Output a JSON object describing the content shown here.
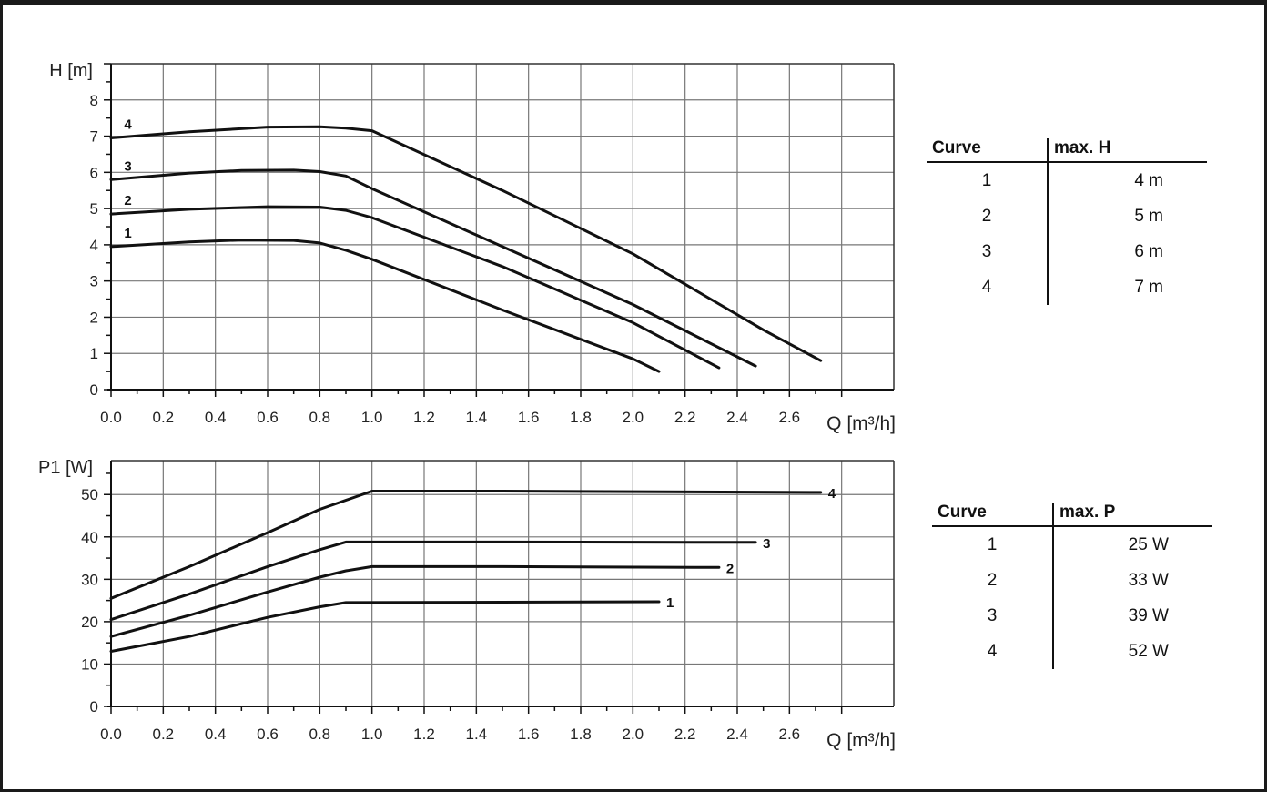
{
  "chart_data": [
    {
      "type": "line",
      "ylabel": "H [m]",
      "xlabel": "Q [m³/h]",
      "xlim": [
        0,
        3.0
      ],
      "ylim": [
        0,
        9
      ],
      "grid": true,
      "x_ticks": [
        "0.0",
        "0.2",
        "0.4",
        "0.6",
        "0.8",
        "1.0",
        "1.2",
        "1.4",
        "1.6",
        "1.8",
        "2.0",
        "2.2",
        "2.4",
        "2.6"
      ],
      "y_ticks": [
        "0",
        "1",
        "2",
        "3",
        "4",
        "5",
        "6",
        "7",
        "8"
      ],
      "series": [
        {
          "name": "1",
          "points": [
            [
              0,
              3.95
            ],
            [
              0.3,
              4.08
            ],
            [
              0.5,
              4.13
            ],
            [
              0.7,
              4.12
            ],
            [
              0.8,
              4.05
            ],
            [
              0.9,
              3.85
            ],
            [
              1.0,
              3.6
            ],
            [
              1.5,
              2.2
            ],
            [
              2.0,
              0.85
            ],
            [
              2.1,
              0.5
            ]
          ]
        },
        {
          "name": "2",
          "points": [
            [
              0,
              4.85
            ],
            [
              0.3,
              4.98
            ],
            [
              0.6,
              5.05
            ],
            [
              0.8,
              5.04
            ],
            [
              0.9,
              4.95
            ],
            [
              1.0,
              4.75
            ],
            [
              1.5,
              3.4
            ],
            [
              2.0,
              1.85
            ],
            [
              2.33,
              0.6
            ]
          ]
        },
        {
          "name": "3",
          "points": [
            [
              0,
              5.8
            ],
            [
              0.3,
              5.98
            ],
            [
              0.5,
              6.05
            ],
            [
              0.7,
              6.06
            ],
            [
              0.8,
              6.02
            ],
            [
              0.9,
              5.9
            ],
            [
              1.0,
              5.55
            ],
            [
              1.5,
              3.95
            ],
            [
              2.0,
              2.35
            ],
            [
              2.47,
              0.65
            ]
          ]
        },
        {
          "name": "4",
          "points": [
            [
              0,
              6.95
            ],
            [
              0.3,
              7.12
            ],
            [
              0.6,
              7.25
            ],
            [
              0.8,
              7.26
            ],
            [
              0.9,
              7.22
            ],
            [
              1.0,
              7.15
            ],
            [
              1.5,
              5.5
            ],
            [
              2.0,
              3.75
            ],
            [
              2.5,
              1.65
            ],
            [
              2.72,
              0.8
            ]
          ]
        }
      ]
    },
    {
      "type": "line",
      "ylabel": "P1 [W]",
      "xlabel": "Q [m³/h]",
      "xlim": [
        0,
        3.0
      ],
      "ylim": [
        0,
        58
      ],
      "grid": true,
      "x_ticks": [
        "0.0",
        "0.2",
        "0.4",
        "0.6",
        "0.8",
        "1.0",
        "1.2",
        "1.4",
        "1.6",
        "1.8",
        "2.0",
        "2.2",
        "2.4",
        "2.6"
      ],
      "y_ticks": [
        "0",
        "10",
        "20",
        "30",
        "40",
        "50"
      ],
      "series": [
        {
          "name": "1",
          "points": [
            [
              0,
              13
            ],
            [
              0.3,
              16.5
            ],
            [
              0.6,
              21
            ],
            [
              0.8,
              23.5
            ],
            [
              0.9,
              24.5
            ],
            [
              1.5,
              24.6
            ],
            [
              2.1,
              24.7
            ]
          ]
        },
        {
          "name": "2",
          "points": [
            [
              0,
              16.5
            ],
            [
              0.3,
              21.5
            ],
            [
              0.6,
              27
            ],
            [
              0.8,
              30.5
            ],
            [
              0.9,
              32
            ],
            [
              1.0,
              33
            ],
            [
              1.5,
              33
            ],
            [
              2.33,
              32.8
            ]
          ]
        },
        {
          "name": "3",
          "points": [
            [
              0,
              20.5
            ],
            [
              0.3,
              26.5
            ],
            [
              0.6,
              33
            ],
            [
              0.8,
              37
            ],
            [
              0.9,
              38.8
            ],
            [
              1.5,
              38.8
            ],
            [
              2.47,
              38.7
            ]
          ]
        },
        {
          "name": "4",
          "points": [
            [
              0,
              25.5
            ],
            [
              0.3,
              33
            ],
            [
              0.6,
              41
            ],
            [
              0.8,
              46.5
            ],
            [
              1.0,
              50.8
            ],
            [
              1.5,
              50.8
            ],
            [
              2.72,
              50.5
            ]
          ]
        }
      ]
    }
  ],
  "tables": [
    {
      "header": [
        "Curve",
        "max. H"
      ],
      "rows": [
        [
          "1",
          "4 m"
        ],
        [
          "2",
          "5 m"
        ],
        [
          "3",
          "6 m"
        ],
        [
          "4",
          "7 m"
        ]
      ]
    },
    {
      "header": [
        "Curve",
        "max. P"
      ],
      "rows": [
        [
          "1",
          "25 W"
        ],
        [
          "2",
          "33 W"
        ],
        [
          "3",
          "39 W"
        ],
        [
          "4",
          "52 W"
        ]
      ]
    }
  ]
}
